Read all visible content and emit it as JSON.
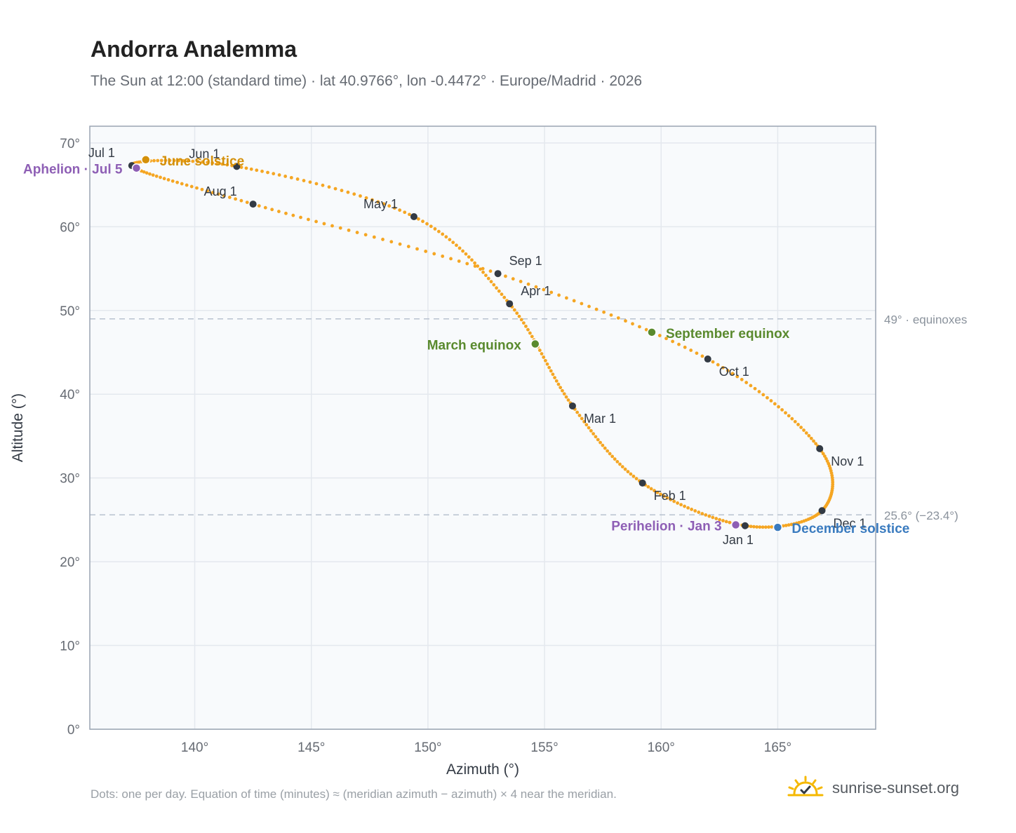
{
  "title": "Andorra Analemma",
  "subtitle": "The Sun at 12:00 (standard time) · lat 40.9766°, lon -0.4472° · Europe/Madrid · 2026",
  "footnote": "Dots: one per day. Equation of time (minutes) ≈ (meridian azimuth − azimuth) × 4 near the meridian.",
  "brand": {
    "text": "sunrise-sunset.org",
    "icon": "sun-check-icon"
  },
  "colors": {
    "curve": "#f5a623",
    "month_marker": "#333a44",
    "solstice_june": "#d4900a",
    "solstice_december": "#3a7bbf",
    "equinox": "#5a8a2e",
    "apsis": "#8e5fb5",
    "reference_line": "#b8c2cf",
    "plot_bg": "#f8fafc",
    "grid": "#e4e8ee"
  },
  "chart_data": {
    "type": "scatter",
    "xlabel": "Azimuth (°)",
    "ylabel": "Altitude (°)",
    "xlim": [
      135.5,
      169.2
    ],
    "ylim": [
      0,
      72
    ],
    "x_ticks": [
      140,
      145,
      150,
      155,
      160,
      165
    ],
    "x_tick_labels": [
      "140°",
      "145°",
      "150°",
      "155°",
      "160°",
      "165°"
    ],
    "y_ticks": [
      0,
      10,
      20,
      30,
      40,
      50,
      60,
      70
    ],
    "y_tick_labels": [
      "0°",
      "10°",
      "20°",
      "30°",
      "40°",
      "50°",
      "60°",
      "70°"
    ],
    "grid": true,
    "series": [
      {
        "points_are": "one dot per day, the month-start points are listed below in date order",
        "month_starts": [
          {
            "label": "Jan 1",
            "x": 163.6,
            "y": 24.3
          },
          {
            "label": "Feb 1",
            "x": 159.2,
            "y": 29.4
          },
          {
            "label": "Mar 1",
            "x": 156.2,
            "y": 38.6
          },
          {
            "label": "Apr 1",
            "x": 153.5,
            "y": 50.8
          },
          {
            "label": "May 1",
            "x": 149.4,
            "y": 61.2
          },
          {
            "label": "Jun 1",
            "x": 141.8,
            "y": 67.2
          },
          {
            "label": "Jul 1",
            "x": 137.3,
            "y": 67.3
          },
          {
            "label": "Aug 1",
            "x": 142.5,
            "y": 62.7
          },
          {
            "label": "Sep 1",
            "x": 153.0,
            "y": 54.4
          },
          {
            "label": "Oct 1",
            "x": 162.0,
            "y": 44.2
          },
          {
            "label": "Nov 1",
            "x": 166.8,
            "y": 33.5
          },
          {
            "label": "Dec 1",
            "x": 166.9,
            "y": 26.1
          }
        ]
      }
    ],
    "special_points": [
      {
        "label": "June solstice",
        "x": 137.9,
        "y": 68.0,
        "color": "#d4900a"
      },
      {
        "label": "Aphelion · Jul 5",
        "x": 137.5,
        "y": 67.0,
        "color": "#8e5fb5"
      },
      {
        "label": "March equinox",
        "x": 154.6,
        "y": 46.0,
        "color": "#5a8a2e"
      },
      {
        "label": "September equinox",
        "x": 159.6,
        "y": 47.4,
        "color": "#5a8a2e"
      },
      {
        "label": "Perihelion · Jan 3",
        "x": 163.2,
        "y": 24.4,
        "color": "#8e5fb5"
      },
      {
        "label": "December solstice",
        "x": 165.0,
        "y": 24.1,
        "color": "#3a7bbf"
      }
    ],
    "reference_lines": [
      {
        "y": 49.0,
        "label": "49° · equinoxes"
      },
      {
        "y": 25.6,
        "label": "25.6° (−23.4°)"
      }
    ]
  }
}
